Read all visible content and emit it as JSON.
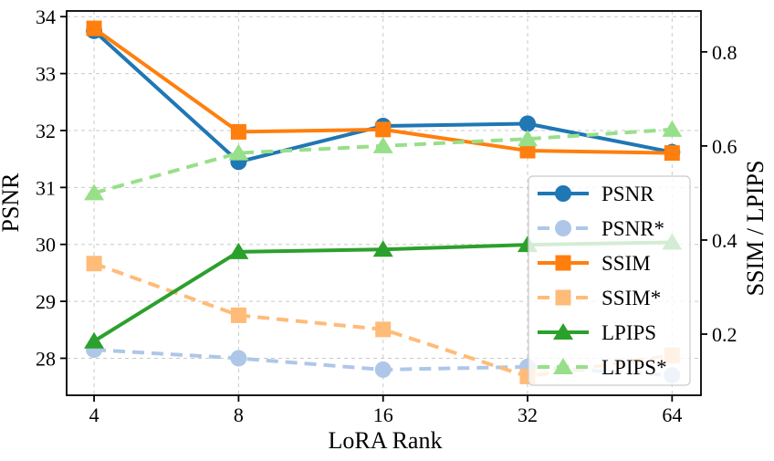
{
  "figure": {
    "description": "Dual-axis line chart of image quality metrics versus LoRA rank"
  },
  "chart_data": {
    "type": "line",
    "title": "",
    "xlabel": "LoRA Rank",
    "ylabel_left": "PSNR",
    "ylabel_right": "SSIM / LPIPS",
    "x": [
      4,
      8,
      16,
      32,
      64
    ],
    "x_scale": "log2",
    "xtick_labels": [
      "4",
      "8",
      "16",
      "32",
      "64"
    ],
    "ylim_left": [
      27.35,
      34.1
    ],
    "yticks_left": [
      28,
      29,
      30,
      31,
      32,
      33,
      34
    ],
    "ytick_labels_left": [
      "28",
      "29",
      "30",
      "31",
      "32",
      "33",
      "34"
    ],
    "ylim_right": [
      0.07,
      0.887
    ],
    "yticks_right": [
      0.2,
      0.4,
      0.6,
      0.8
    ],
    "ytick_labels_right": [
      "0.2",
      "0.4",
      "0.6",
      "0.8"
    ],
    "grid": true,
    "legend_position": "lower right",
    "series": [
      {
        "name": "PSNR",
        "axis": "left",
        "color": "#1f77b4",
        "marker": "circle",
        "style": "solid",
        "values": [
          33.75,
          31.45,
          32.08,
          32.12,
          31.62
        ]
      },
      {
        "name": "PSNR*",
        "axis": "left",
        "color": "#aec7e8",
        "marker": "circle",
        "style": "dashed",
        "values": [
          28.15,
          28.0,
          27.8,
          27.85,
          27.7
        ]
      },
      {
        "name": "SSIM",
        "axis": "right",
        "color": "#ff7f0e",
        "marker": "square",
        "style": "solid",
        "values": [
          0.85,
          0.63,
          0.635,
          0.59,
          0.585
        ]
      },
      {
        "name": "SSIM*",
        "axis": "right",
        "color": "#ffbb78",
        "marker": "square",
        "style": "dashed",
        "values": [
          0.35,
          0.24,
          0.21,
          0.11,
          0.155
        ]
      },
      {
        "name": "LPIPS",
        "axis": "right",
        "color": "#2ca02c",
        "marker": "triangle",
        "style": "solid",
        "values": [
          0.185,
          0.375,
          0.38,
          0.39,
          0.395
        ]
      },
      {
        "name": "LPIPS*",
        "axis": "right",
        "color": "#98df8a",
        "marker": "triangle",
        "style": "dashed",
        "values": [
          0.5,
          0.585,
          0.6,
          0.615,
          0.635
        ]
      }
    ]
  },
  "colors": {
    "background": "#ffffff",
    "gridline": "#c9c9c9",
    "spine": "#000000",
    "legend_border": "#cccccc",
    "legend_fill": "rgba(255,255,255,0.8)"
  }
}
